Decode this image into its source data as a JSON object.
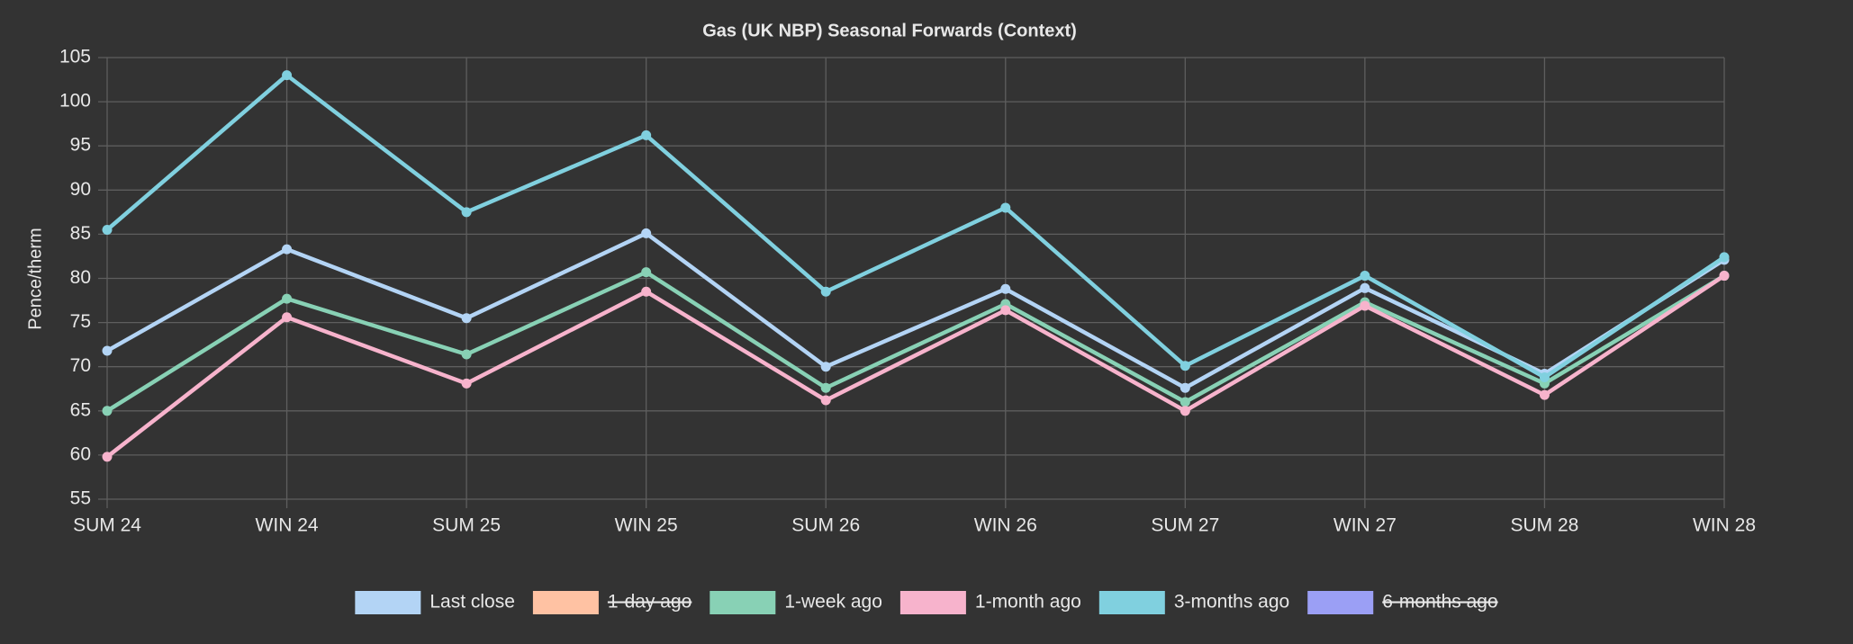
{
  "chart_data": {
    "type": "line",
    "title": "Gas (UK NBP) Seasonal Forwards (Context)",
    "y_label": "Pence/therm",
    "categories": [
      "SUM 24",
      "WIN 24",
      "SUM 25",
      "WIN 25",
      "SUM 26",
      "WIN 26",
      "SUM 27",
      "WIN 27",
      "SUM 28",
      "WIN 28"
    ],
    "series": [
      {
        "name": "Last close",
        "color": "#b3d4f5",
        "values": [
          71.8,
          83.3,
          75.5,
          85.1,
          70.0,
          78.8,
          67.6,
          78.9,
          69.2,
          82.1
        ]
      },
      {
        "name": "1-day ago",
        "color": "#ffc2a3",
        "hidden": true
      },
      {
        "name": "1-week ago",
        "color": "#88d1b5",
        "values": [
          65.0,
          77.7,
          71.4,
          80.7,
          67.6,
          77.1,
          66.0,
          77.3,
          68.1,
          80.3
        ]
      },
      {
        "name": "1-month ago",
        "color": "#f7b3cc",
        "values": [
          59.8,
          75.6,
          68.1,
          78.5,
          66.2,
          76.4,
          65.0,
          76.9,
          66.8,
          80.3
        ]
      },
      {
        "name": "3-months ago",
        "color": "#80d0df",
        "values": [
          85.5,
          103.0,
          87.5,
          96.2,
          78.5,
          88.0,
          70.1,
          80.3,
          68.8,
          82.4
        ]
      },
      {
        "name": "6-months ago",
        "color": "#9b9ff5",
        "hidden": true
      }
    ],
    "ylim": [
      55,
      105
    ],
    "yticks": [
      55,
      60,
      65,
      70,
      75,
      80,
      85,
      90,
      95,
      100,
      105
    ],
    "grid": true,
    "legend": "bottom"
  }
}
